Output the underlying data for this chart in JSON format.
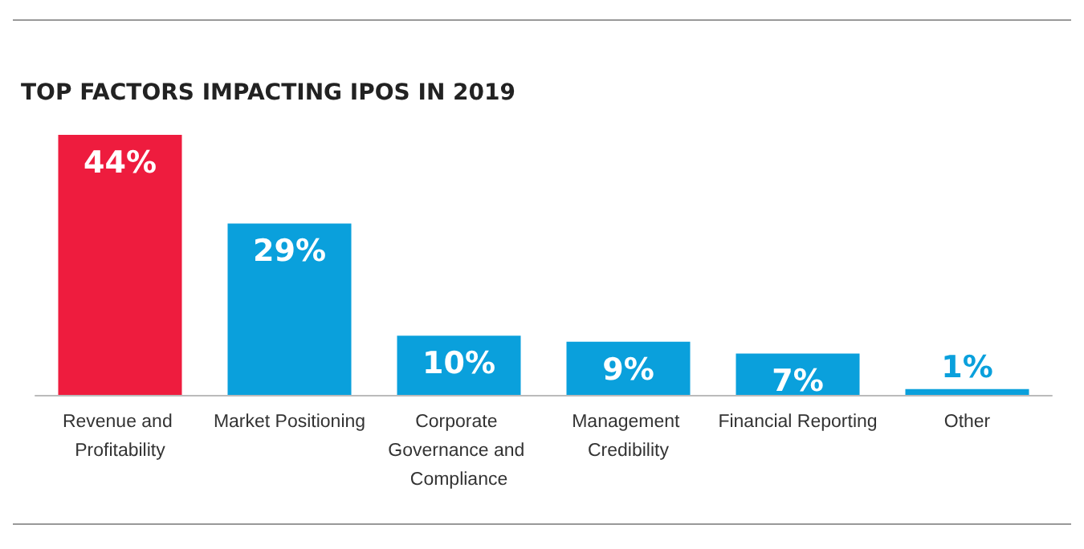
{
  "chart_data": {
    "type": "bar",
    "title": "TOP FACTORS IMPACTING IPOS IN 2019",
    "categories": [
      "Revenue and Profitability",
      "Market Positioning",
      "Corporate Governance and Compliance",
      "Management Credibility",
      "Financial Reporting",
      "Other"
    ],
    "values": [
      44,
      29,
      10,
      9,
      7,
      1
    ],
    "colors": [
      "#ee1c3e",
      "#0aa0dc",
      "#0aa0dc",
      "#0aa0dc",
      "#0aa0dc",
      "#0aa0dc"
    ],
    "value_labels": [
      "44%",
      "29%",
      "10%",
      "9%",
      "7%",
      "1%"
    ]
  }
}
